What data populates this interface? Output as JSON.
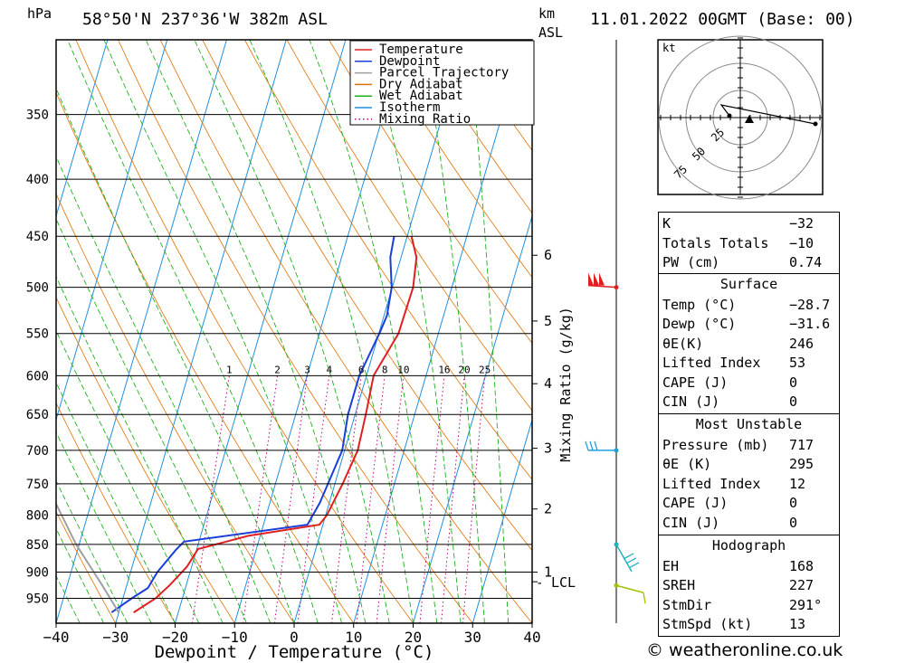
{
  "header": {
    "pressure_unit": "hPa",
    "location": "58°50'N 237°36'W 382m ASL",
    "height_unit_km": "km",
    "height_unit_asl": "ASL",
    "datetime": "11.01.2022 00GMT (Base: 00)"
  },
  "chart_data": {
    "type": "skew-t",
    "xlabel": "Dewpoint / Temperature (°C)",
    "ylabel_left": "hPa",
    "ylabel_right": "Mixing Ratio (g/kg)",
    "x_ticks": [
      "−40",
      "−30",
      "−20",
      "−10",
      "0",
      "10",
      "20",
      "30",
      "40"
    ],
    "x_range": [
      -40,
      40
    ],
    "pressure_levels": [
      350,
      400,
      450,
      500,
      550,
      600,
      650,
      700,
      750,
      800,
      850,
      900,
      950
    ],
    "pressure_range": [
      1000,
      300
    ],
    "height_km_ticks": [
      {
        "label": "1",
        "p": 900
      },
      {
        "label": "2",
        "p": 790
      },
      {
        "label": "3",
        "p": 697
      },
      {
        "label": "4",
        "p": 610
      },
      {
        "label": "5",
        "p": 536
      },
      {
        "label": "6",
        "p": 468
      }
    ],
    "lcl_label": "LCL",
    "lcl_pressure": 918,
    "mixing_ratio_labels": [
      "1",
      "2",
      "3",
      "4",
      "6",
      "8",
      "10",
      "16",
      "20",
      "25"
    ],
    "legend": [
      {
        "name": "Temperature",
        "color": "#e02020",
        "style": "solid"
      },
      {
        "name": "Dewpoint",
        "color": "#1a3fd6",
        "style": "solid"
      },
      {
        "name": "Parcel Trajectory",
        "color": "#a0a0a0",
        "style": "solid"
      },
      {
        "name": "Dry Adiabat",
        "color": "#e07000",
        "style": "solid"
      },
      {
        "name": "Wet Adiabat",
        "color": "#20b020",
        "style": "solid"
      },
      {
        "name": "Isotherm",
        "color": "#2090e0",
        "style": "solid"
      },
      {
        "name": "Mixing Ratio",
        "color": "#c0007a",
        "style": "dotted"
      }
    ],
    "series": [
      {
        "name": "Temperature",
        "points": [
          [
            978,
            -27.5
          ],
          [
            950,
            -24.5
          ],
          [
            925,
            -22.8
          ],
          [
            890,
            -20.8
          ],
          [
            858,
            -19.8
          ],
          [
            835,
            -12
          ],
          [
            816,
            -0.6
          ],
          [
            800,
            0.2
          ],
          [
            750,
            1.3
          ],
          [
            700,
            2.2
          ],
          [
            650,
            1.8
          ],
          [
            600,
            1.2
          ],
          [
            550,
            3.3
          ],
          [
            500,
            3.5
          ],
          [
            470,
            2.6
          ],
          [
            450,
            0.7
          ]
        ]
      },
      {
        "name": "Dewpoint",
        "points": [
          [
            978,
            -31.2
          ],
          [
            950,
            -28.5
          ],
          [
            930,
            -26.3
          ],
          [
            900,
            -25.5
          ],
          [
            860,
            -23.5
          ],
          [
            845,
            -22.5
          ],
          [
            816,
            -2.6
          ],
          [
            780,
            -1.6
          ],
          [
            700,
            -0.4
          ],
          [
            650,
            -1.2
          ],
          [
            600,
            -1.2
          ],
          [
            550,
            0.1
          ],
          [
            530,
            0.5
          ],
          [
            500,
            -0.1
          ],
          [
            470,
            -1.8
          ],
          [
            450,
            -2.2
          ]
        ]
      },
      {
        "name": "Parcel Trajectory",
        "points": [
          [
            978,
            -30
          ],
          [
            920,
            -34.5
          ],
          [
            850,
            -40.5
          ],
          [
            780,
            -46
          ],
          [
            700,
            -52
          ]
        ]
      }
    ],
    "wind_barbs": [
      {
        "p": 500,
        "color": "#e02020"
      },
      {
        "p": 700,
        "color": "#20a0e0"
      },
      {
        "p": 850,
        "color": "#20b0c0"
      },
      {
        "p": 925,
        "color": "#a0c000"
      }
    ],
    "hodograph": {
      "unit": "kt",
      "rings": [
        "25",
        "50",
        "75"
      ]
    }
  },
  "indices": {
    "general": [
      {
        "label": "K",
        "value": "−32"
      },
      {
        "label": "Totals Totals",
        "value": "−10"
      },
      {
        "label": "PW (cm)",
        "value": "0.74"
      }
    ],
    "surface_title": "Surface",
    "surface": [
      {
        "label": "Temp (°C)",
        "value": "−28.7"
      },
      {
        "label": "Dewp (°C)",
        "value": "−31.6"
      },
      {
        "label": "θE(K)",
        "value": "246"
      },
      {
        "label": "Lifted Index",
        "value": "53"
      },
      {
        "label": "CAPE (J)",
        "value": "0"
      },
      {
        "label": "CIN (J)",
        "value": "0"
      }
    ],
    "mu_title": "Most Unstable",
    "most_unstable": [
      {
        "label": "Pressure (mb)",
        "value": "717"
      },
      {
        "label": "θE (K)",
        "value": "295"
      },
      {
        "label": "Lifted Index",
        "value": "12"
      },
      {
        "label": "CAPE (J)",
        "value": "0"
      },
      {
        "label": "CIN (J)",
        "value": "0"
      }
    ],
    "hodo_title": "Hodograph",
    "hodograph": [
      {
        "label": "EH",
        "value": "168"
      },
      {
        "label": "SREH",
        "value": "227"
      },
      {
        "label": "StmDir",
        "value": "291°"
      },
      {
        "label": "StmSpd (kt)",
        "value": "13"
      }
    ]
  },
  "footer": {
    "text": "© weatheronline.co.uk"
  }
}
